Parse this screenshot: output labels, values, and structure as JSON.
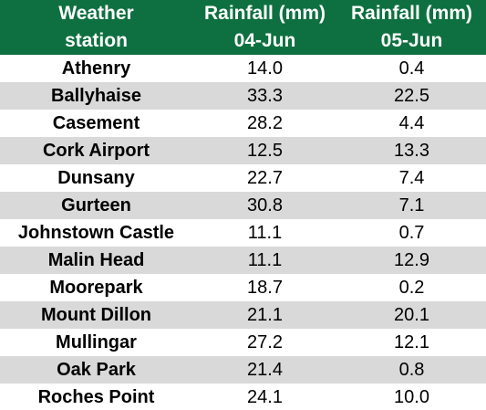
{
  "chart_data": {
    "type": "table",
    "columns": [
      [
        "Weather",
        "station"
      ],
      [
        "Rainfall (mm)",
        "04-Jun"
      ],
      [
        "Rainfall (mm)",
        "05-Jun"
      ]
    ],
    "rows": [
      {
        "station": "Athenry",
        "jun04": "14.0",
        "jun05": "0.4"
      },
      {
        "station": "Ballyhaise",
        "jun04": "33.3",
        "jun05": "22.5"
      },
      {
        "station": "Casement",
        "jun04": "28.2",
        "jun05": "4.4"
      },
      {
        "station": "Cork Airport",
        "jun04": "12.5",
        "jun05": "13.3"
      },
      {
        "station": "Dunsany",
        "jun04": "22.7",
        "jun05": "7.4"
      },
      {
        "station": "Gurteen",
        "jun04": "30.8",
        "jun05": "7.1"
      },
      {
        "station": "Johnstown Castle",
        "jun04": "11.1",
        "jun05": "0.7"
      },
      {
        "station": "Malin Head",
        "jun04": "11.1",
        "jun05": "12.9"
      },
      {
        "station": "Moorepark",
        "jun04": "18.7",
        "jun05": "0.2"
      },
      {
        "station": "Mount Dillon",
        "jun04": "21.1",
        "jun05": "20.1"
      },
      {
        "station": "Mullingar",
        "jun04": "27.2",
        "jun05": "12.1"
      },
      {
        "station": "Oak Park",
        "jun04": "21.4",
        "jun05": "0.8"
      },
      {
        "station": "Roches Point",
        "jun04": "24.1",
        "jun05": "10.0"
      }
    ]
  },
  "colors": {
    "header_bg": "#0e7040",
    "header_text": "#ffffff",
    "row_alt_bg": "#d9d9d9",
    "row_bg": "#ffffff"
  }
}
